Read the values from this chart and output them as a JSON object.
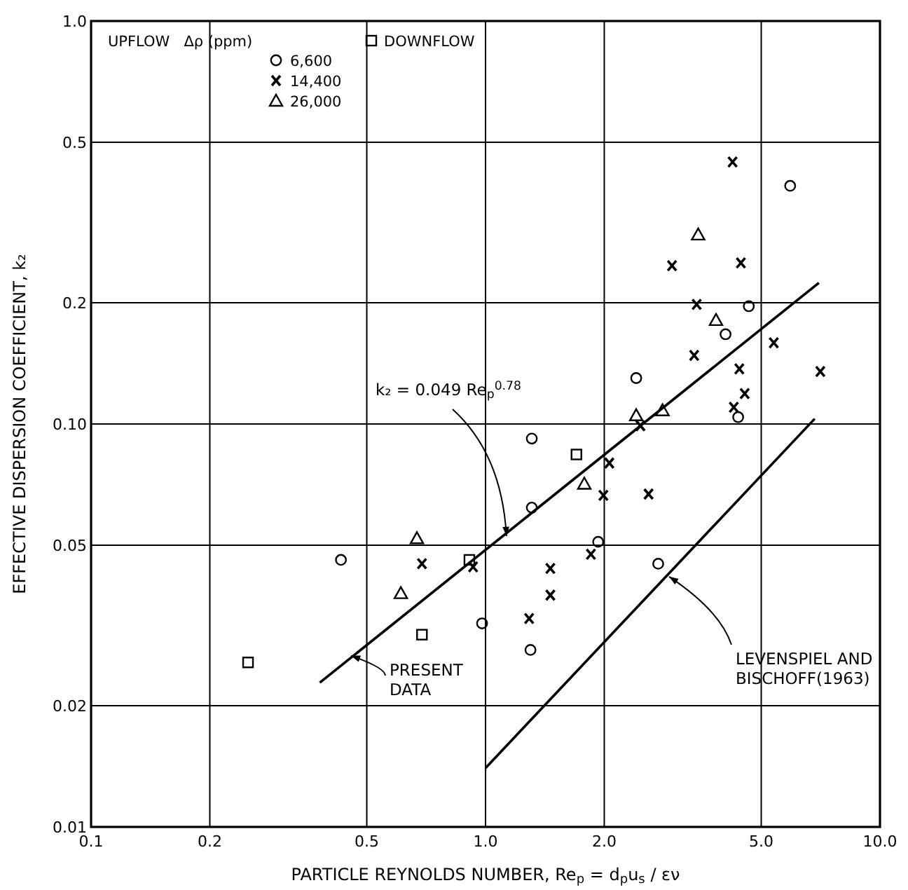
{
  "chart_data": {
    "type": "scatter",
    "xlabel": "PARTICLE REYNOLDS NUMBER, Re$_{p}$ = d$_{p}$u$_{s}$ / εν",
    "ylabel": "EFFECTIVE DISPERSION COEFFICIENT, k₂",
    "log": "xy",
    "grid": true,
    "legend": "top left",
    "legend_title": "UPFLOW   Δρ (ppm)",
    "xlim": [
      0.1,
      10
    ],
    "ylim": [
      0.01,
      1
    ],
    "xticks": [
      0.1,
      0.2,
      0.5,
      {
        "value": 1,
        "label": "1.0"
      },
      {
        "value": 2,
        "label": "2.0"
      },
      {
        "value": 5,
        "label": "5.0"
      },
      {
        "value": 10,
        "label": "10.0"
      }
    ],
    "yticks": [
      0.01,
      0.02,
      0.05,
      {
        "value": 0.1,
        "label": "0.10"
      },
      0.2,
      0.5,
      {
        "value": 1,
        "label": "1.0"
      }
    ],
    "series": [
      {
        "name": "6,600",
        "type": "scatter",
        "marker": "circle",
        "color": "#000000",
        "x": [
          5.92,
          4.65,
          4.06,
          2.41,
          4.37,
          1.31,
          1.31,
          1.93,
          0.43,
          0.98,
          1.3,
          2.74
        ],
        "values": [
          0.39,
          0.196,
          0.167,
          0.13,
          0.104,
          0.092,
          0.062,
          0.051,
          0.046,
          0.032,
          0.0275,
          0.045
        ]
      },
      {
        "name": "14,400",
        "type": "scatter",
        "marker": "cross",
        "color": "#000000",
        "x": [
          4.23,
          2.97,
          4.44,
          3.43,
          5.38,
          3.38,
          4.4,
          7.06,
          4.54,
          4.26,
          2.47,
          2.06,
          1.99,
          2.59,
          1.85,
          0.69,
          0.93,
          1.46,
          1.46,
          1.29
        ],
        "values": [
          0.447,
          0.247,
          0.251,
          0.198,
          0.159,
          0.148,
          0.137,
          0.135,
          0.119,
          0.11,
          0.099,
          0.08,
          0.0665,
          0.067,
          0.0475,
          0.045,
          0.0442,
          0.0438,
          0.0376,
          0.0329
        ]
      },
      {
        "name": "26,000",
        "type": "scatter",
        "marker": "triangle",
        "color": "#000000",
        "x": [
          3.46,
          3.84,
          2.41,
          2.81,
          1.78,
          0.67,
          0.61
        ],
        "values": [
          0.295,
          0.181,
          0.105,
          0.108,
          0.071,
          0.052,
          0.038
        ]
      },
      {
        "name": "DOWNFLOW",
        "type": "scatter",
        "marker": "square",
        "color": "#000000",
        "x": [
          1.7,
          0.91,
          0.69,
          0.25
        ],
        "values": [
          0.084,
          0.046,
          0.03,
          0.0256
        ]
      },
      {
        "type": "line",
        "marker": "none",
        "line_style": "solid",
        "color": "#000000",
        "x": [
          0.38,
          7.0
        ],
        "values": [
          0.0228,
          0.224
        ]
      },
      {
        "type": "line",
        "marker": "none",
        "line_style": "solid",
        "color": "#000000",
        "x": [
          1.0,
          6.83
        ],
        "values": [
          0.014,
          0.103
        ]
      }
    ],
    "annotations": [
      {
        "text": "k₂ = 0.049 Re$_{p}$$^{0.78}$",
        "x": 1.13,
        "y": 0.0527
      },
      {
        "text": "PRESENT\nDATA",
        "x": 0.456,
        "y": 0.0266
      },
      {
        "text": "LEVENSPIEL AND\nBISCHOFF(1963)",
        "x": 2.92,
        "y": 0.0418
      }
    ]
  }
}
